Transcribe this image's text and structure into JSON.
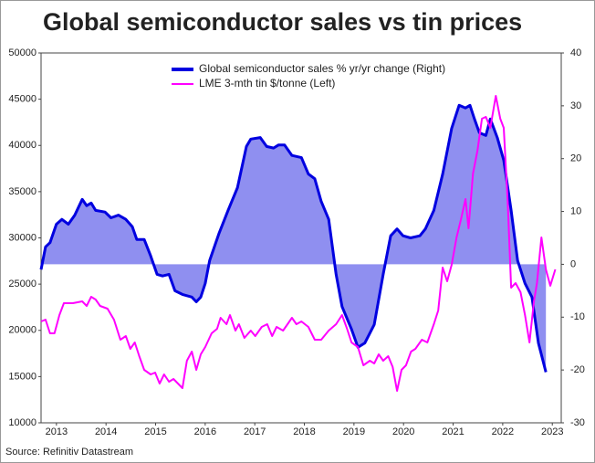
{
  "chart_data": {
    "type": "line",
    "title": "Global semiconductor sales vs tin prices",
    "source": "Source: Refinitiv Datastream",
    "xlim": [
      2012.69,
      2023.18
    ],
    "xticks": [
      2013,
      2014,
      2015,
      2016,
      2017,
      2018,
      2019,
      2020,
      2021,
      2022,
      2023
    ],
    "ylim": [
      10000,
      50000
    ],
    "yticks": [
      10000,
      15000,
      20000,
      25000,
      30000,
      35000,
      40000,
      45000,
      50000
    ],
    "y2lim": [
      -30,
      40
    ],
    "y2ticks": [
      -30,
      -20,
      -10,
      0,
      10,
      20,
      30,
      40
    ],
    "legend": "top",
    "series": [
      {
        "name": "Global semiconductor sales % yr/yr change (Right)",
        "color": "#0000e0",
        "fill": "#8f8ff0",
        "axis": "y2",
        "x": [
          2012.69,
          2012.78,
          2012.87,
          2013.0,
          2013.11,
          2013.24,
          2013.37,
          2013.52,
          2013.61,
          2013.7,
          2013.79,
          2013.98,
          2014.1,
          2014.25,
          2014.4,
          2014.53,
          2014.62,
          2014.77,
          2014.9,
          2015.03,
          2015.14,
          2015.27,
          2015.39,
          2015.54,
          2015.73,
          2015.82,
          2015.91,
          2016.0,
          2016.09,
          2016.28,
          2016.46,
          2016.65,
          2016.83,
          2016.92,
          2017.11,
          2017.24,
          2017.38,
          2017.48,
          2017.6,
          2017.75,
          2017.94,
          2018.08,
          2018.21,
          2018.34,
          2018.49,
          2018.64,
          2018.76,
          2018.95,
          2019.08,
          2019.22,
          2019.41,
          2019.59,
          2019.74,
          2019.87,
          2019.99,
          2020.14,
          2020.33,
          2020.44,
          2020.61,
          2020.79,
          2020.97,
          2021.12,
          2021.25,
          2021.34,
          2021.43,
          2021.53,
          2021.66,
          2021.75,
          2021.89,
          2022.02,
          2022.17,
          2022.3,
          2022.45,
          2022.59,
          2022.72,
          2022.87
        ],
        "values": [
          -1.0,
          3.3,
          4.1,
          7.6,
          8.5,
          7.6,
          9.3,
          12.3,
          11.1,
          11.6,
          10.2,
          9.9,
          8.8,
          9.3,
          8.5,
          7.1,
          4.7,
          4.7,
          1.6,
          -1.9,
          -2.2,
          -1.9,
          -5.0,
          -5.7,
          -6.2,
          -7.1,
          -6.2,
          -3.6,
          0.7,
          5.9,
          10.2,
          14.5,
          22.3,
          23.7,
          24.0,
          22.3,
          22.0,
          22.6,
          22.6,
          20.6,
          20.2,
          17.1,
          16.2,
          11.9,
          8.5,
          -1.9,
          -8.0,
          -12.3,
          -15.7,
          -14.9,
          -11.4,
          -1.9,
          5.4,
          6.7,
          5.4,
          5.0,
          5.4,
          6.7,
          10.2,
          17.1,
          25.7,
          30.1,
          29.6,
          30.1,
          27.5,
          24.9,
          24.4,
          27.5,
          24.0,
          19.7,
          10.2,
          0.7,
          -3.6,
          -6.2,
          -14.9,
          -20.4
        ]
      },
      {
        "name": "LME 3-mth tin $/tonne (Left)",
        "color": "#ff00ff",
        "axis": "y",
        "x": [
          2012.69,
          2012.78,
          2012.87,
          2012.96,
          2013.06,
          2013.15,
          2013.33,
          2013.52,
          2013.61,
          2013.7,
          2013.79,
          2013.88,
          2014.03,
          2014.16,
          2014.29,
          2014.4,
          2014.49,
          2014.58,
          2014.67,
          2014.77,
          2014.9,
          2014.99,
          2015.08,
          2015.17,
          2015.27,
          2015.36,
          2015.45,
          2015.54,
          2015.63,
          2015.73,
          2015.82,
          2015.91,
          2016.0,
          2016.13,
          2016.24,
          2016.31,
          2016.43,
          2016.5,
          2016.61,
          2016.68,
          2016.79,
          2016.92,
          2017.01,
          2017.14,
          2017.25,
          2017.35,
          2017.44,
          2017.57,
          2017.66,
          2017.75,
          2017.84,
          2017.94,
          2018.08,
          2018.21,
          2018.34,
          2018.49,
          2018.64,
          2018.76,
          2018.86,
          2018.95,
          2019.08,
          2019.19,
          2019.32,
          2019.41,
          2019.5,
          2019.59,
          2019.69,
          2019.78,
          2019.87,
          2019.96,
          2020.05,
          2020.15,
          2020.24,
          2020.37,
          2020.48,
          2020.61,
          2020.7,
          2020.79,
          2020.88,
          2020.97,
          2021.07,
          2021.16,
          2021.25,
          2021.31,
          2021.4,
          2021.49,
          2021.58,
          2021.66,
          2021.75,
          2021.86,
          2021.95,
          2022.02,
          2022.1,
          2022.17,
          2022.26,
          2022.36,
          2022.45,
          2022.54,
          2022.63,
          2022.69,
          2022.78,
          2022.87,
          2022.96,
          2023.06
        ],
        "values": [
          20960,
          21160,
          19680,
          19680,
          21650,
          22940,
          22940,
          23140,
          22640,
          23630,
          23330,
          22640,
          22350,
          21160,
          18990,
          19380,
          18000,
          18690,
          17210,
          15730,
          15230,
          15430,
          14250,
          15230,
          14440,
          14740,
          14250,
          13750,
          16720,
          17700,
          15730,
          17410,
          18200,
          19680,
          20170,
          21360,
          20670,
          21650,
          19980,
          20670,
          19190,
          19980,
          19380,
          20370,
          20670,
          19380,
          20370,
          19980,
          20670,
          21360,
          20670,
          20960,
          20370,
          18990,
          18990,
          19980,
          20670,
          21650,
          20170,
          18690,
          18200,
          16220,
          16720,
          16420,
          17410,
          16720,
          17210,
          16030,
          13460,
          15730,
          16220,
          17700,
          18000,
          18990,
          18690,
          20670,
          22150,
          26790,
          25310,
          27090,
          30050,
          32030,
          34200,
          31040,
          36960,
          39430,
          42890,
          43090,
          41900,
          45360,
          42890,
          41900,
          34000,
          24620,
          25110,
          24120,
          21650,
          18690,
          23140,
          25110,
          30050,
          26590,
          24820,
          26590
        ]
      }
    ]
  }
}
